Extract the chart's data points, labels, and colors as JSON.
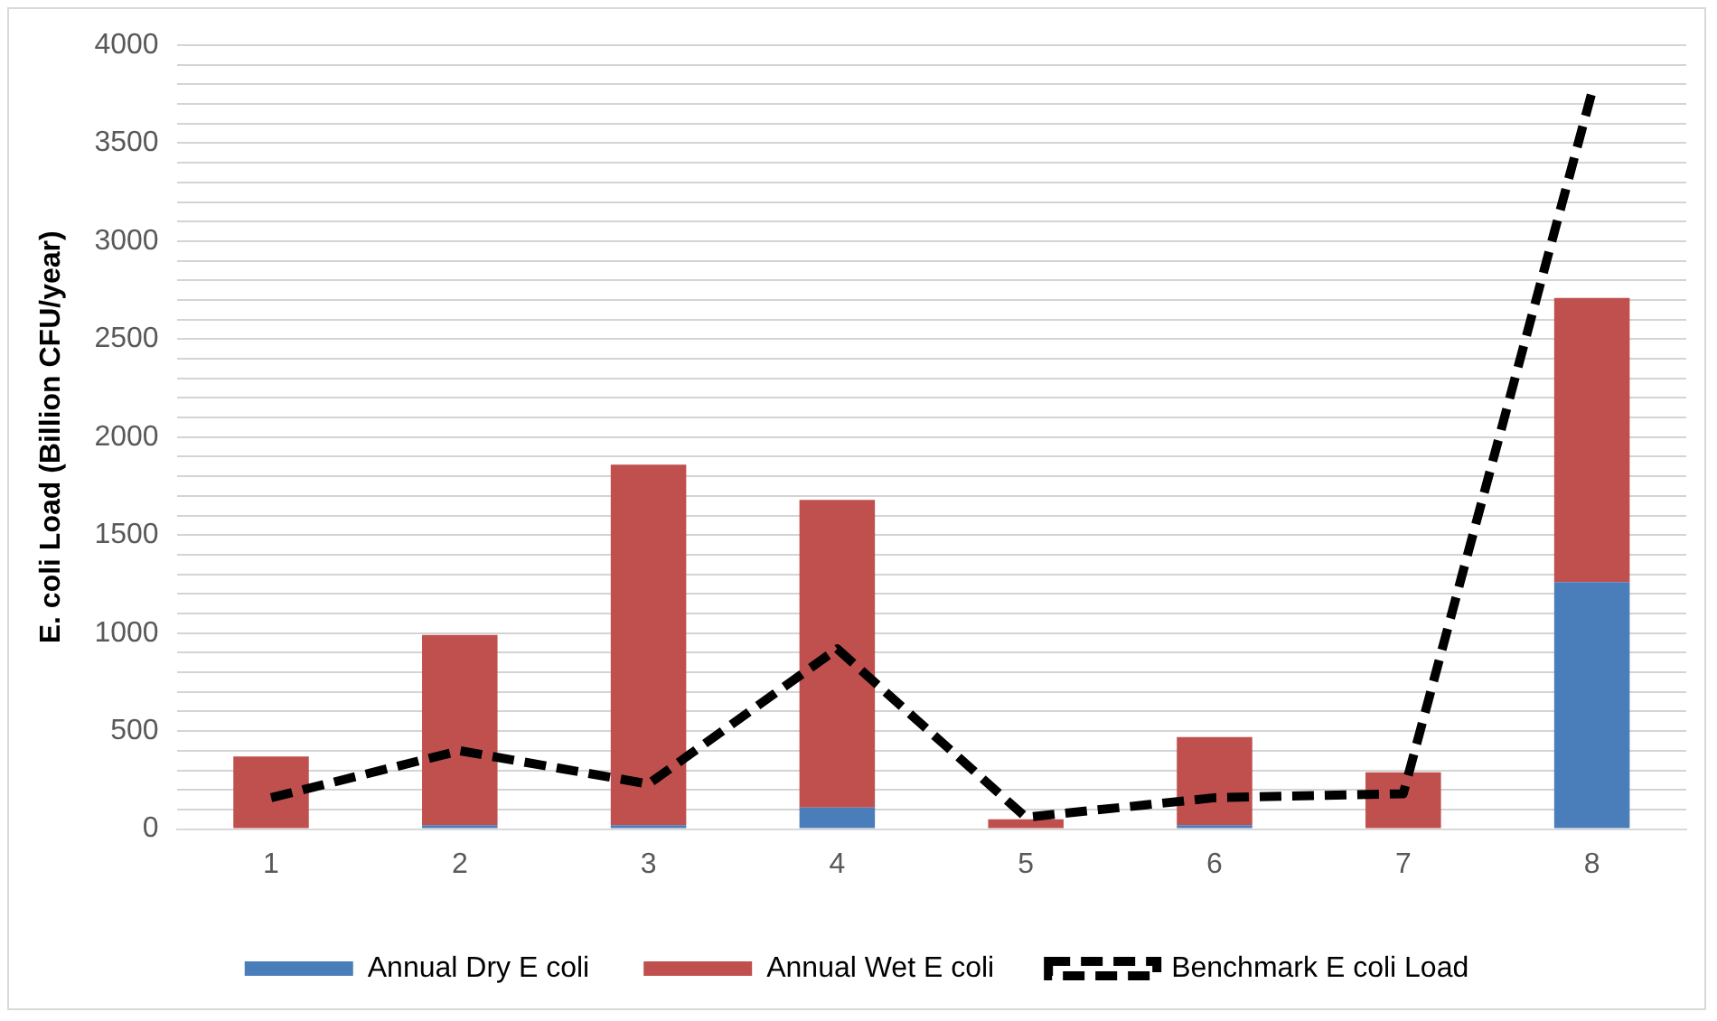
{
  "chart_data": {
    "type": "bar",
    "stacked": true,
    "ylabel": "E. coli Load (Billion CFU/year)",
    "categories": [
      "1",
      "2",
      "3",
      "4",
      "5",
      "6",
      "7",
      "8"
    ],
    "series": [
      {
        "name": "Annual Dry E coli",
        "color": "#4a7ebb",
        "values": [
          0,
          20,
          20,
          110,
          0,
          20,
          0,
          1260
        ]
      },
      {
        "name": "Annual Wet E coli",
        "color": "#c0504d",
        "values": [
          370,
          970,
          1840,
          1570,
          50,
          450,
          290,
          1450
        ]
      },
      {
        "name": "Benchmark E coli Load",
        "type": "line",
        "color": "#000000",
        "line_style": "dashed",
        "marker": "none",
        "values": [
          160,
          400,
          230,
          920,
          60,
          160,
          180,
          3760
        ]
      }
    ],
    "ylim": [
      0,
      4000
    ],
    "yticks": [
      0,
      {
        "value": 100,
        "label": null
      },
      {
        "value": 200,
        "label": null
      },
      {
        "value": 300,
        "label": null
      },
      {
        "value": 400,
        "label": null
      },
      500,
      {
        "value": 600,
        "label": null
      },
      {
        "value": 700,
        "label": null
      },
      {
        "value": 800,
        "label": null
      },
      {
        "value": 900,
        "label": null
      },
      1000,
      {
        "value": 1100,
        "label": null
      },
      {
        "value": 1200,
        "label": null
      },
      {
        "value": 1300,
        "label": null
      },
      {
        "value": 1400,
        "label": null
      },
      1500,
      {
        "value": 1600,
        "label": null
      },
      {
        "value": 1700,
        "label": null
      },
      {
        "value": 1800,
        "label": null
      },
      {
        "value": 1900,
        "label": null
      },
      2000,
      {
        "value": 2100,
        "label": null
      },
      {
        "value": 2200,
        "label": null
      },
      {
        "value": 2300,
        "label": null
      },
      {
        "value": 2400,
        "label": null
      },
      2500,
      {
        "value": 2600,
        "label": null
      },
      {
        "value": 2700,
        "label": null
      },
      {
        "value": 2800,
        "label": null
      },
      {
        "value": 2900,
        "label": null
      },
      3000,
      {
        "value": 3100,
        "label": null
      },
      {
        "value": 3200,
        "label": null
      },
      {
        "value": 3300,
        "label": null
      },
      {
        "value": 3400,
        "label": null
      },
      3500,
      {
        "value": 3600,
        "label": null
      },
      {
        "value": 3700,
        "label": null
      },
      {
        "value": 3800,
        "label": null
      },
      {
        "value": 3900,
        "label": null
      },
      4000
    ],
    "grid": "y",
    "legend": "bottom"
  }
}
